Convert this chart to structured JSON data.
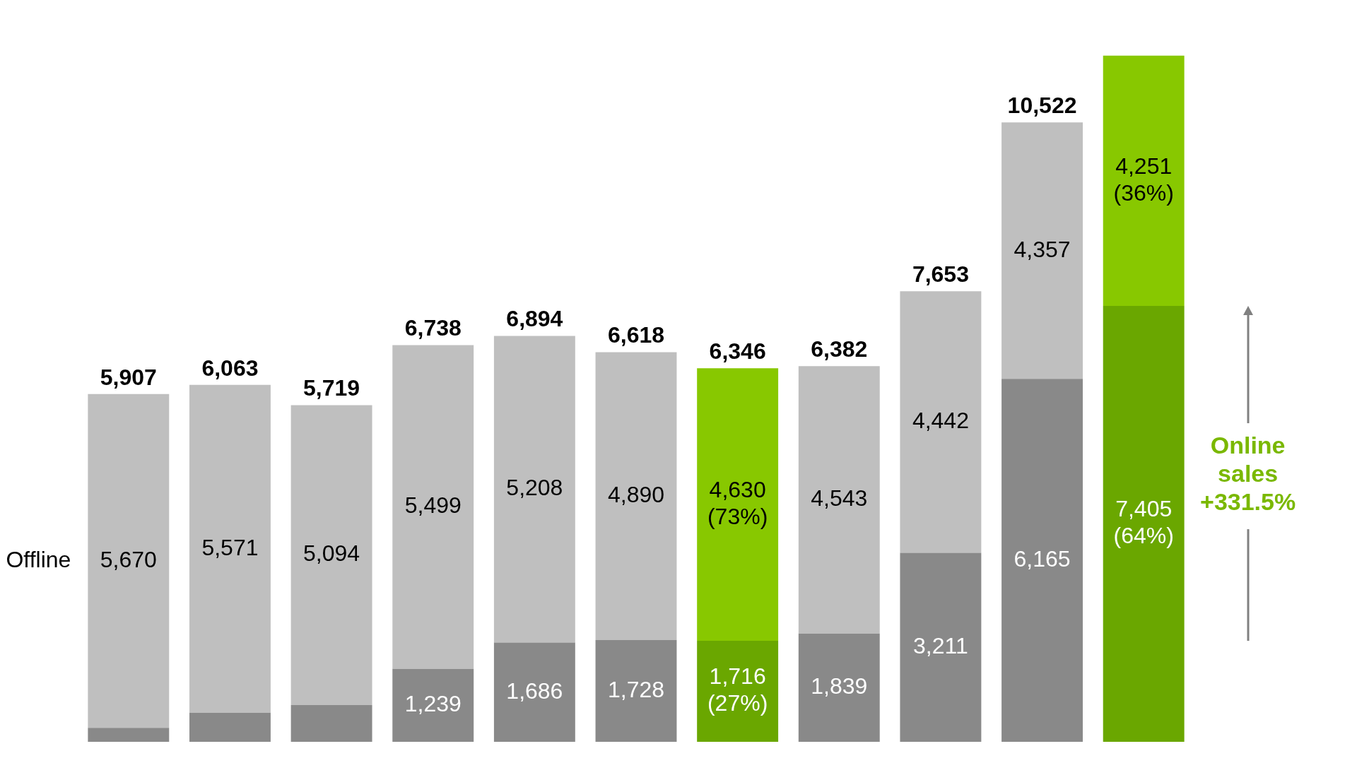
{
  "chart_data": {
    "type": "bar",
    "stacked": true,
    "categories": [
      null,
      null,
      null,
      null,
      null,
      null,
      null,
      null,
      null,
      null,
      null
    ],
    "series": [
      {
        "name": null,
        "colors": [
          "#898989",
          "#898989",
          "#898989",
          "#898989",
          "#898989",
          "#898989",
          "#6aa700",
          "#898989",
          "#898989",
          "#898989",
          "#6aa700"
        ],
        "values": [
          237,
          492,
          625,
          1239,
          1686,
          1728,
          1716,
          1839,
          3211,
          6165,
          7405
        ],
        "value_labels": [
          null,
          null,
          null,
          "1,239",
          "1,686",
          "1,728",
          "1,716 (27%)",
          "1,839",
          "3,211",
          "6,165",
          "7,405 (64%)"
        ]
      },
      {
        "name": "Offline",
        "colors": [
          "#bfbfbf",
          "#bfbfbf",
          "#bfbfbf",
          "#bfbfbf",
          "#bfbfbf",
          "#bfbfbf",
          "#88c800",
          "#bfbfbf",
          "#bfbfbf",
          "#bfbfbf",
          "#88c800"
        ],
        "values": [
          5670,
          5571,
          5094,
          5499,
          5208,
          4890,
          4630,
          4543,
          4442,
          4357,
          4251
        ],
        "value_labels": [
          "5,670",
          "5,571",
          "5,094",
          "5,499",
          "5,208",
          "4,890",
          "4,630 (73%)",
          "4,543",
          "4,442",
          "4,357",
          "4,251 (36%)"
        ]
      }
    ],
    "totals": [
      "5,907",
      "6,063",
      "5,719",
      "6,738",
      "6,894",
      "6,618",
      "6,346",
      "6,382",
      "7,653",
      "10,522",
      null
    ],
    "annotations": [
      "Online sales +331.5%"
    ],
    "legend": false
  }
}
